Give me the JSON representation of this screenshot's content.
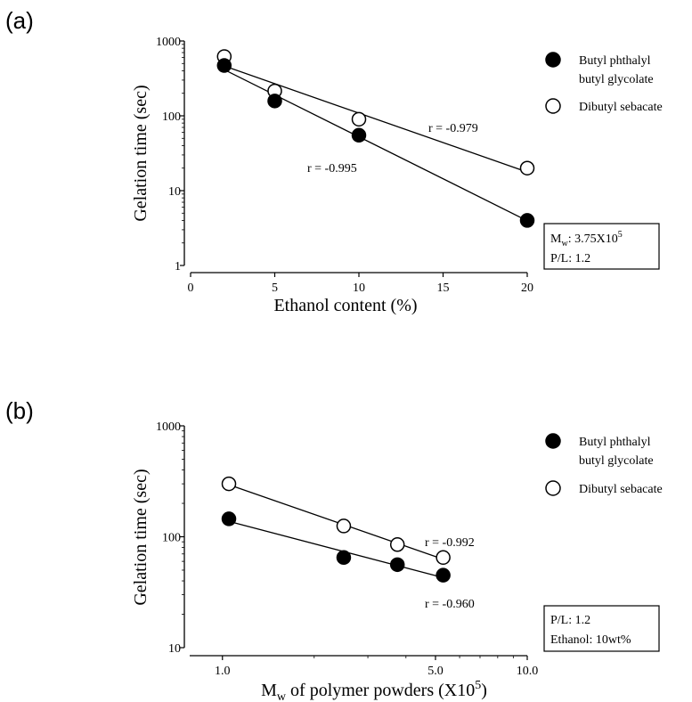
{
  "chart_data": [
    {
      "panel_label": "(a)",
      "type": "scatter",
      "xlabel": "Ethanol content (%)",
      "ylabel": "Gelation time (sec)",
      "x_scale": "linear",
      "y_scale": "log",
      "xlim": [
        0,
        20
      ],
      "ylim": [
        1,
        1000
      ],
      "xticks": [
        "0",
        "5",
        "10",
        "15",
        "20"
      ],
      "yticks": [
        "1",
        "10",
        "100",
        "1000"
      ],
      "legend_placement": "top-right",
      "series": [
        {
          "name": "Butyl phthalyl butyl glycolate",
          "name_lines": [
            "Butyl phthalyl",
            "butyl glycolate"
          ],
          "marker": "filled-circle",
          "x": [
            2,
            5,
            10,
            20
          ],
          "y": [
            470,
            158,
            55,
            4
          ],
          "fit_label": "r = -0.995"
        },
        {
          "name": "Dibutyl sebacate",
          "name_lines": [
            "Dibutyl sebacate"
          ],
          "marker": "open-circle",
          "x": [
            2,
            5,
            10,
            20
          ],
          "y": [
            620,
            215,
            90,
            20
          ],
          "fit_label": "r = -0.979"
        }
      ],
      "info_box": [
        "M",
        "w",
        ": 3.75X10",
        "5",
        "P/L: 1.2"
      ]
    },
    {
      "panel_label": "(b)",
      "type": "scatter",
      "xlabel": [
        "M",
        "w",
        " of polymer powders (X10",
        "5",
        ")"
      ],
      "ylabel": "Gelation time (sec)",
      "x_scale": "log",
      "y_scale": "log",
      "xlim": [
        0.75,
        10
      ],
      "ylim": [
        10,
        1000
      ],
      "xticks": [
        "1.0",
        "5.0",
        "10.0"
      ],
      "yticks": [
        "10",
        "100",
        "1000"
      ],
      "legend_placement": "top-right",
      "series": [
        {
          "name": "Butyl phthalyl butyl glycolate",
          "name_lines": [
            "Butyl phthalyl",
            "butyl glycolate"
          ],
          "marker": "filled-circle",
          "x": [
            1.05,
            2.5,
            3.75,
            5.3
          ],
          "y": [
            145,
            65,
            56,
            45
          ],
          "fit_label": "r = -0.960"
        },
        {
          "name": "Dibutyl sebacate",
          "name_lines": [
            "Dibutyl sebacate"
          ],
          "marker": "open-circle",
          "x": [
            1.05,
            2.5,
            3.75,
            5.3
          ],
          "y": [
            300,
            125,
            85,
            65
          ],
          "fit_label": "r = -0.992"
        }
      ],
      "info_box": [
        "P/L: 1.2",
        "Ethanol: 10wt%"
      ]
    }
  ]
}
